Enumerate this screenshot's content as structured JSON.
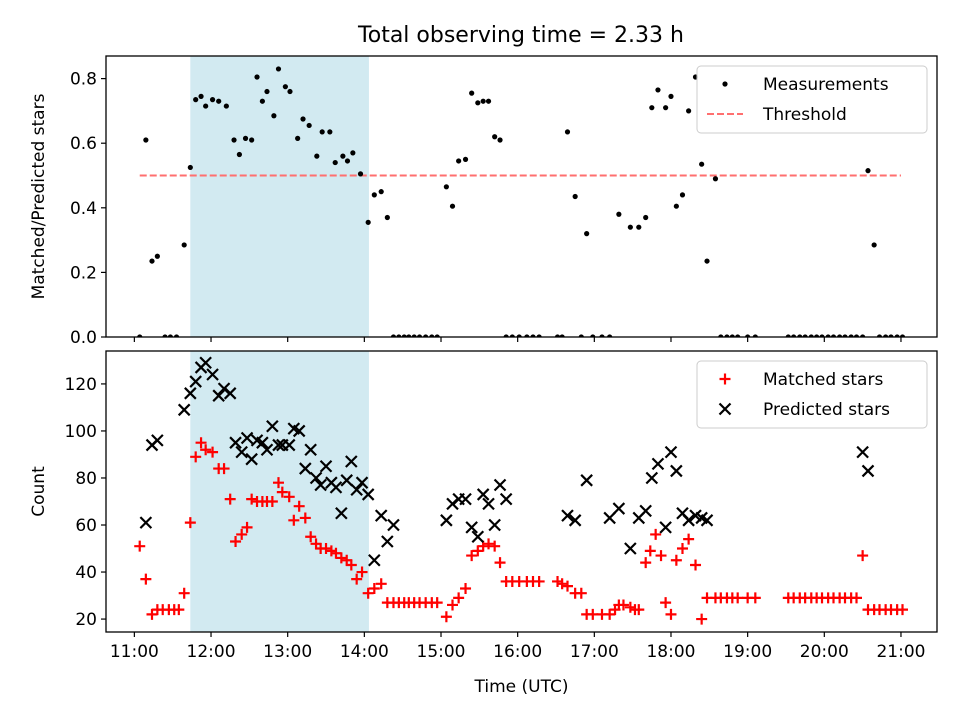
{
  "title": "Total observing time = 2.33 h",
  "colors": {
    "background": "#ffffff",
    "shade": "#add8e6",
    "measurement": "#000000",
    "threshold": "#ff6f6f",
    "matched": "#ff0000",
    "predicted": "#000000"
  },
  "chart_data": [
    {
      "type": "scatter",
      "panel": "top",
      "ylabel": "Matched/Predicted stars",
      "xlabel": "",
      "ylim": [
        0,
        0.87
      ],
      "yticks": [
        0.0,
        0.2,
        0.4,
        0.6,
        0.8
      ],
      "ytick_labels": [
        "0.0",
        "0.2",
        "0.4",
        "0.6",
        "0.8"
      ],
      "xlim": [
        10.63,
        21.47
      ],
      "xticks": [
        11,
        12,
        13,
        14,
        15,
        16,
        17,
        18,
        19,
        20,
        21
      ],
      "shaded_span": [
        11.73,
        14.06
      ],
      "legend": {
        "position": "top-right",
        "entries": [
          "Measurements",
          "Threshold"
        ]
      },
      "threshold": {
        "name": "Threshold",
        "value": 0.5,
        "x_range": [
          11.07,
          21.0
        ],
        "style": "dashed"
      },
      "series": [
        {
          "name": "Measurements",
          "marker": "dot",
          "x": [
            11.07,
            11.15,
            11.23,
            11.3,
            11.4,
            11.47,
            11.55,
            11.65,
            11.73,
            11.8,
            11.87,
            11.93,
            12.02,
            12.1,
            12.2,
            12.3,
            12.37,
            12.45,
            12.53,
            12.6,
            12.67,
            12.73,
            12.82,
            12.88,
            12.97,
            13.03,
            13.13,
            13.2,
            13.28,
            13.38,
            13.45,
            13.55,
            13.62,
            13.72,
            13.78,
            13.85,
            13.95,
            14.05,
            14.13,
            14.22,
            14.3,
            14.38,
            14.45,
            14.52,
            14.58,
            14.65,
            14.72,
            14.8,
            14.88,
            14.95,
            15.07,
            15.15,
            15.23,
            15.32,
            15.4,
            15.48,
            15.55,
            15.62,
            15.7,
            15.77,
            15.85,
            15.93,
            16.02,
            16.12,
            16.2,
            16.28,
            16.52,
            16.58,
            16.65,
            16.75,
            16.83,
            16.9,
            16.98,
            17.1,
            17.2,
            17.32,
            17.47,
            17.58,
            17.67,
            17.75,
            17.83,
            17.93,
            18.0,
            18.07,
            18.15,
            18.23,
            18.32,
            18.4,
            18.47,
            18.58,
            18.65,
            18.73,
            18.8,
            18.87,
            19.0,
            19.1,
            19.53,
            19.6,
            19.68,
            19.75,
            19.83,
            19.9,
            19.97,
            20.05,
            20.12,
            20.2,
            20.27,
            20.35,
            20.42,
            20.5,
            20.57,
            20.65,
            20.72,
            20.8,
            20.87,
            20.95,
            21.02
          ],
          "y": [
            0.0,
            0.61,
            0.235,
            0.25,
            0.0,
            0.0,
            0.0,
            0.285,
            0.525,
            0.735,
            0.745,
            0.715,
            0.735,
            0.73,
            0.715,
            0.61,
            0.565,
            0.615,
            0.61,
            0.805,
            0.73,
            0.76,
            0.685,
            0.83,
            0.775,
            0.76,
            0.615,
            0.675,
            0.655,
            0.56,
            0.635,
            0.635,
            0.54,
            0.56,
            0.545,
            0.57,
            0.505,
            0.355,
            0.44,
            0.45,
            0.37,
            0.0,
            0.0,
            0.0,
            0.0,
            0.0,
            0.0,
            0.0,
            0.0,
            0.0,
            0.465,
            0.405,
            0.545,
            0.55,
            0.755,
            0.725,
            0.73,
            0.73,
            0.62,
            0.61,
            0.0,
            0.0,
            0.0,
            0.0,
            0.0,
            0.0,
            0.0,
            0.0,
            0.635,
            0.435,
            0.0,
            0.32,
            0.0,
            0.0,
            0.0,
            0.38,
            0.34,
            0.34,
            0.37,
            0.71,
            0.765,
            0.71,
            0.745,
            0.405,
            0.44,
            0.7,
            0.805,
            0.535,
            0.235,
            0.49,
            0.0,
            0.0,
            0.0,
            0.0,
            0.0,
            0.0,
            0.0,
            0.0,
            0.0,
            0.0,
            0.0,
            0.0,
            0.0,
            0.0,
            0.0,
            0.0,
            0.0,
            0.0,
            0.0,
            0.0,
            0.515,
            0.285,
            0.0,
            0.0,
            0.0,
            0.0,
            0.0
          ]
        }
      ]
    },
    {
      "type": "scatter",
      "panel": "bottom",
      "ylabel": "Count",
      "xlabel": "Time (UTC)",
      "ylim": [
        14.5,
        134
      ],
      "yticks": [
        20,
        40,
        60,
        80,
        100,
        120
      ],
      "ytick_labels": [
        "20",
        "40",
        "60",
        "80",
        "100",
        "120"
      ],
      "xlim": [
        10.63,
        21.47
      ],
      "xticks": [
        11,
        12,
        13,
        14,
        15,
        16,
        17,
        18,
        19,
        20,
        21
      ],
      "xtick_labels": [
        "11:00",
        "12:00",
        "13:00",
        "14:00",
        "15:00",
        "16:00",
        "17:00",
        "18:00",
        "19:00",
        "20:00",
        "21:00"
      ],
      "shaded_span": [
        11.73,
        14.06
      ],
      "legend": {
        "position": "top-right",
        "entries": [
          "Matched stars",
          "Predicted stars"
        ]
      },
      "series": [
        {
          "name": "Matched stars",
          "marker": "plus",
          "x": [
            11.07,
            11.15,
            11.23,
            11.3,
            11.37,
            11.45,
            11.52,
            11.58,
            11.65,
            11.73,
            11.8,
            11.87,
            11.93,
            12.02,
            12.1,
            12.17,
            12.25,
            12.32,
            12.4,
            12.47,
            12.53,
            12.6,
            12.67,
            12.73,
            12.8,
            12.88,
            12.93,
            13.02,
            13.08,
            13.15,
            13.23,
            13.3,
            13.37,
            13.43,
            13.5,
            13.57,
            13.63,
            13.7,
            13.77,
            13.83,
            13.9,
            13.97,
            14.05,
            14.13,
            14.22,
            14.3,
            14.38,
            14.45,
            14.52,
            14.58,
            14.65,
            14.72,
            14.8,
            14.88,
            14.95,
            15.07,
            15.15,
            15.23,
            15.32,
            15.4,
            15.48,
            15.55,
            15.62,
            15.7,
            15.77,
            15.85,
            15.93,
            16.02,
            16.12,
            16.2,
            16.28,
            16.52,
            16.58,
            16.65,
            16.75,
            16.83,
            16.9,
            16.98,
            17.1,
            17.2,
            17.27,
            17.32,
            17.38,
            17.47,
            17.53,
            17.58,
            17.67,
            17.73,
            17.8,
            17.87,
            17.93,
            18.0,
            18.07,
            18.15,
            18.23,
            18.32,
            18.4,
            18.47,
            18.58,
            18.65,
            18.73,
            18.8,
            18.87,
            19.0,
            19.1,
            19.53,
            19.6,
            19.68,
            19.75,
            19.83,
            19.9,
            19.97,
            20.05,
            20.12,
            20.2,
            20.27,
            20.35,
            20.42,
            20.5,
            20.57,
            20.65,
            20.72,
            20.8,
            20.87,
            20.95,
            21.02
          ],
          "y": [
            51,
            37,
            22,
            24,
            24,
            24,
            24,
            24,
            31,
            61,
            89,
            95,
            92,
            91,
            84,
            84,
            71,
            53,
            56,
            59,
            71,
            70,
            70,
            70,
            70,
            78,
            74,
            72,
            62,
            68,
            63,
            55,
            52,
            50,
            50,
            49,
            48,
            46,
            45,
            43,
            37,
            40,
            31,
            33,
            35,
            27,
            27,
            27,
            27,
            27,
            27,
            27,
            27,
            27,
            27,
            21,
            26,
            29,
            33,
            47,
            49,
            51,
            52,
            51,
            44,
            36,
            36,
            36,
            36,
            36,
            36,
            36,
            35,
            34,
            31,
            31,
            22,
            22,
            22,
            22,
            24,
            26,
            26,
            25,
            24,
            24,
            44,
            49,
            56,
            47,
            27,
            22,
            45,
            50,
            54,
            43,
            20,
            29,
            29,
            29,
            29,
            29,
            29,
            29,
            29,
            29,
            29,
            29,
            29,
            29,
            29,
            29,
            29,
            29,
            29,
            29,
            29,
            29,
            47,
            24,
            24,
            24,
            24,
            24,
            24,
            24
          ]
        },
        {
          "name": "Predicted stars",
          "marker": "x",
          "x": [
            11.15,
            11.23,
            11.3,
            11.65,
            11.73,
            11.8,
            11.87,
            11.93,
            12.02,
            12.1,
            12.17,
            12.25,
            12.32,
            12.4,
            12.47,
            12.53,
            12.6,
            12.67,
            12.73,
            12.8,
            12.88,
            12.93,
            13.02,
            13.08,
            13.15,
            13.23,
            13.3,
            13.37,
            13.43,
            13.5,
            13.57,
            13.63,
            13.7,
            13.77,
            13.83,
            13.9,
            13.97,
            14.05,
            14.13,
            14.22,
            14.3,
            14.38,
            15.07,
            15.15,
            15.23,
            15.32,
            15.4,
            15.48,
            15.55,
            15.62,
            15.7,
            15.77,
            15.85,
            16.65,
            16.75,
            16.9,
            17.2,
            17.32,
            17.47,
            17.58,
            17.67,
            17.75,
            17.83,
            17.93,
            18.0,
            18.07,
            18.15,
            18.23,
            18.32,
            18.4,
            18.47,
            20.5,
            20.57
          ],
          "y": [
            61,
            94,
            96,
            109,
            116,
            121,
            127,
            129,
            124,
            115,
            118,
            116,
            95,
            91,
            97,
            88,
            96,
            95,
            92,
            102,
            94,
            94,
            94,
            101,
            100,
            84,
            92,
            80,
            77,
            85,
            78,
            76,
            65,
            79,
            87,
            75,
            78,
            73,
            45,
            64,
            53,
            60,
            62,
            69,
            71,
            71,
            59,
            55,
            73,
            69,
            60,
            77,
            71,
            64,
            62,
            79,
            63,
            67,
            50,
            63,
            66,
            80,
            86,
            59,
            91,
            83,
            65,
            62,
            64,
            63,
            62,
            91,
            83
          ]
        }
      ]
    }
  ]
}
